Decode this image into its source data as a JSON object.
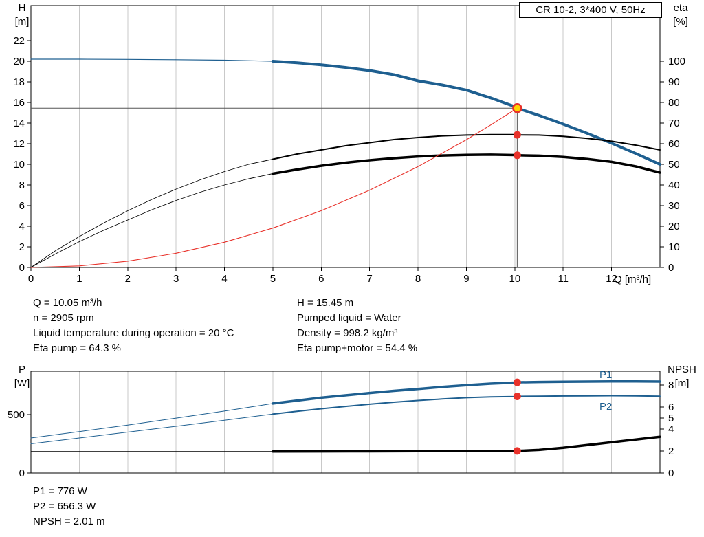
{
  "colors": {
    "blue": "#1e5f90",
    "red": "#e8312a",
    "black": "#000000",
    "grid": "#c9c9c9",
    "frame": "#000000",
    "duty_line": "#555555",
    "duty_fill": "#ffd400"
  },
  "chart_data": [
    {
      "type": "line",
      "name": "head-efficiency-chart",
      "title": "CR 10-2, 3*400 V, 50Hz",
      "xlabel": "Q [m³/h]",
      "ylabel_left": [
        "H",
        "[m]"
      ],
      "ylabel_right": [
        "eta",
        "[%]"
      ],
      "xlim": [
        0,
        13
      ],
      "x_ticks": [
        0,
        1,
        2,
        3,
        4,
        5,
        6,
        7,
        8,
        9,
        10,
        11,
        12
      ],
      "x_gridlines": [
        1,
        2,
        3,
        4,
        5,
        6,
        7,
        8,
        9,
        10,
        11,
        12
      ],
      "ylim_left": [
        0,
        25.4
      ],
      "y_ticks_left": [
        0,
        2,
        4,
        6,
        8,
        10,
        12,
        14,
        16,
        18,
        20,
        22
      ],
      "ylim_right": [
        0,
        127
      ],
      "y_ticks_right": [
        0,
        10,
        20,
        30,
        40,
        50,
        60,
        70,
        80,
        90,
        100
      ],
      "grid": "vertical-only",
      "legend_position": "none",
      "series": [
        {
          "name": "pump-curve",
          "axis": "left",
          "color_key": "blue",
          "thin_width": 1.2,
          "thick_width": 4,
          "thick_from": 5,
          "points": [
            [
              0,
              20.2
            ],
            [
              1,
              20.2
            ],
            [
              2,
              20.18
            ],
            [
              3,
              20.15
            ],
            [
              4,
              20.1
            ],
            [
              5,
              20.0
            ],
            [
              5.5,
              19.85
            ],
            [
              6,
              19.65
            ],
            [
              6.5,
              19.4
            ],
            [
              7,
              19.1
            ],
            [
              7.5,
              18.7
            ],
            [
              8,
              18.1
            ],
            [
              8.5,
              17.7
            ],
            [
              9,
              17.2
            ],
            [
              9.5,
              16.45
            ],
            [
              10,
              15.6
            ],
            [
              10.05,
              15.45
            ],
            [
              10.5,
              14.75
            ],
            [
              11,
              13.9
            ],
            [
              11.5,
              13.0
            ],
            [
              12,
              12.05
            ],
            [
              12.5,
              11.05
            ],
            [
              13,
              10.0
            ]
          ]
        },
        {
          "name": "eta-pump-curve",
          "axis": "right",
          "color_key": "black",
          "thin_width": 0.9,
          "thick_width": 2,
          "thick_from": 5,
          "points": [
            [
              0,
              0
            ],
            [
              0.5,
              8
            ],
            [
              1,
              15
            ],
            [
              1.5,
              21.5
            ],
            [
              2,
              27.5
            ],
            [
              2.5,
              33
            ],
            [
              3,
              38
            ],
            [
              3.5,
              42.5
            ],
            [
              4,
              46.5
            ],
            [
              4.5,
              50
            ],
            [
              5,
              52.5
            ],
            [
              5.5,
              55
            ],
            [
              6,
              57
            ],
            [
              6.5,
              59
            ],
            [
              7,
              60.5
            ],
            [
              7.5,
              62
            ],
            [
              8,
              63
            ],
            [
              8.5,
              63.8
            ],
            [
              9,
              64.2
            ],
            [
              9.5,
              64.4
            ],
            [
              10,
              64.4
            ],
            [
              10.05,
              64.3
            ],
            [
              10.5,
              64.2
            ],
            [
              11,
              63.6
            ],
            [
              11.5,
              62.6
            ],
            [
              12,
              61.2
            ],
            [
              12.5,
              59.3
            ],
            [
              13,
              57
            ]
          ]
        },
        {
          "name": "eta-pump-motor-curve",
          "axis": "right",
          "color_key": "black",
          "thin_width": 0.9,
          "thick_width": 3.5,
          "thick_from": 5,
          "points": [
            [
              0,
              0
            ],
            [
              0.5,
              6.5
            ],
            [
              1,
              12.5
            ],
            [
              1.5,
              18
            ],
            [
              2,
              23
            ],
            [
              2.5,
              28
            ],
            [
              3,
              32.5
            ],
            [
              3.5,
              36.5
            ],
            [
              4,
              40
            ],
            [
              4.5,
              43
            ],
            [
              5,
              45.5
            ],
            [
              5.5,
              47.5
            ],
            [
              6,
              49.3
            ],
            [
              6.5,
              50.8
            ],
            [
              7,
              52
            ],
            [
              7.5,
              53
            ],
            [
              8,
              53.8
            ],
            [
              8.5,
              54.3
            ],
            [
              9,
              54.6
            ],
            [
              9.5,
              54.7
            ],
            [
              10,
              54.5
            ],
            [
              10.05,
              54.4
            ],
            [
              10.5,
              54.2
            ],
            [
              11,
              53.6
            ],
            [
              11.5,
              52.6
            ],
            [
              12,
              51.2
            ],
            [
              12.5,
              49
            ],
            [
              13,
              46
            ]
          ]
        },
        {
          "name": "system-curve",
          "axis": "left",
          "color_key": "red",
          "thin_width": 1.1,
          "thick_width": 1.1,
          "thick_from": 99,
          "points": [
            [
              0,
              0
            ],
            [
              1,
              0.15
            ],
            [
              2,
              0.61
            ],
            [
              3,
              1.38
            ],
            [
              4,
              2.45
            ],
            [
              5,
              3.82
            ],
            [
              6,
              5.51
            ],
            [
              7,
              7.5
            ],
            [
              8,
              9.79
            ],
            [
              9,
              12.39
            ],
            [
              9.5,
              13.81
            ],
            [
              10,
              15.3
            ],
            [
              10.05,
              15.45
            ]
          ]
        }
      ],
      "duty_point": {
        "q": 10.05,
        "h": 15.45
      },
      "duty_markers_eta": [
        64.3,
        54.4
      ]
    },
    {
      "type": "line",
      "name": "power-npsh-chart",
      "title": "",
      "xlabel": "",
      "ylabel_left": [
        "P",
        "[W]"
      ],
      "ylabel_right": [
        "NPSH",
        "[m]"
      ],
      "xlim": [
        0,
        13
      ],
      "x_ticks": [],
      "x_gridlines": [
        1,
        2,
        3,
        4,
        5,
        6,
        7,
        8,
        9,
        10,
        11,
        12
      ],
      "ylim_left": [
        0,
        871
      ],
      "y_ticks_left": [
        0,
        500
      ],
      "ylim_right": [
        0,
        9.25
      ],
      "y_ticks_right": [
        0,
        2,
        4,
        5,
        6,
        8
      ],
      "grid": "vertical-only",
      "legend_position": "inline-right",
      "series": [
        {
          "name": "p1-curve",
          "axis": "left",
          "color_key": "blue",
          "thin_width": 1,
          "thick_width": 3.5,
          "thick_from": 5,
          "label": "P1",
          "points": [
            [
              0,
              300
            ],
            [
              1,
              355
            ],
            [
              2,
              410
            ],
            [
              3,
              470
            ],
            [
              4,
              530
            ],
            [
              5,
              595
            ],
            [
              5.5,
              620
            ],
            [
              6,
              645
            ],
            [
              6.5,
              665
            ],
            [
              7,
              685
            ],
            [
              7.5,
              703
            ],
            [
              8,
              720
            ],
            [
              8.5,
              737
            ],
            [
              9,
              752
            ],
            [
              9.5,
              765
            ],
            [
              10,
              774
            ],
            [
              10.05,
              776
            ],
            [
              10.5,
              779
            ],
            [
              11,
              781
            ],
            [
              11.5,
              783
            ],
            [
              12,
              784
            ],
            [
              12.5,
              784
            ],
            [
              13,
              783
            ]
          ]
        },
        {
          "name": "p2-curve",
          "axis": "left",
          "color_key": "blue",
          "thin_width": 1,
          "thick_width": 2,
          "thick_from": 5,
          "label": "P2",
          "points": [
            [
              0,
              250
            ],
            [
              1,
              300
            ],
            [
              2,
              350
            ],
            [
              3,
              400
            ],
            [
              4,
              452
            ],
            [
              5,
              505
            ],
            [
              5.5,
              528
            ],
            [
              6,
              550
            ],
            [
              6.5,
              570
            ],
            [
              7,
              589
            ],
            [
              7.5,
              606
            ],
            [
              8,
              621
            ],
            [
              8.5,
              634
            ],
            [
              9,
              645
            ],
            [
              9.5,
              652
            ],
            [
              10,
              655
            ],
            [
              10.05,
              656
            ],
            [
              10.5,
              658
            ],
            [
              11,
              660
            ],
            [
              11.5,
              661
            ],
            [
              12,
              662
            ],
            [
              12.5,
              661
            ],
            [
              13,
              658
            ]
          ]
        },
        {
          "name": "npsh-curve",
          "axis": "right",
          "color_key": "black",
          "thin_width": 1,
          "thick_width": 3.5,
          "thick_from": 5,
          "points": [
            [
              0,
              1.95
            ],
            [
              2,
              1.95
            ],
            [
              5,
              1.95
            ],
            [
              6,
              1.96
            ],
            [
              7,
              1.97
            ],
            [
              8,
              1.98
            ],
            [
              9,
              2.0
            ],
            [
              10,
              2.01
            ],
            [
              10.05,
              2.01
            ],
            [
              10.5,
              2.1
            ],
            [
              11,
              2.3
            ],
            [
              11.5,
              2.55
            ],
            [
              12,
              2.8
            ],
            [
              12.5,
              3.05
            ],
            [
              13,
              3.3
            ]
          ]
        }
      ],
      "duty_markers": [
        {
          "series": "p1-curve",
          "q": 10.05,
          "v": 776
        },
        {
          "series": "p2-curve",
          "q": 10.05,
          "v": 656.3
        },
        {
          "series": "npsh-curve",
          "q": 10.05,
          "v": 2.01
        }
      ],
      "series_labels": [
        {
          "text": "P1",
          "q": 11.75,
          "v": 841,
          "axis": "left"
        },
        {
          "text": "P2",
          "q": 11.75,
          "v": 571,
          "axis": "left"
        }
      ]
    }
  ],
  "info_panels": {
    "top_left": [
      "Q = 10.05 m³/h",
      "n = 2905 rpm",
      "Liquid temperature during operation = 20 °C",
      "Eta pump = 64.3 %"
    ],
    "top_right": [
      "H = 15.45 m",
      "Pumped liquid = Water",
      "Density = 998.2 kg/m³",
      "Eta pump+motor = 54.4 %"
    ],
    "bottom": [
      "P1 = 776 W",
      "P2 = 656.3 W",
      "NPSH = 2.01 m"
    ]
  }
}
